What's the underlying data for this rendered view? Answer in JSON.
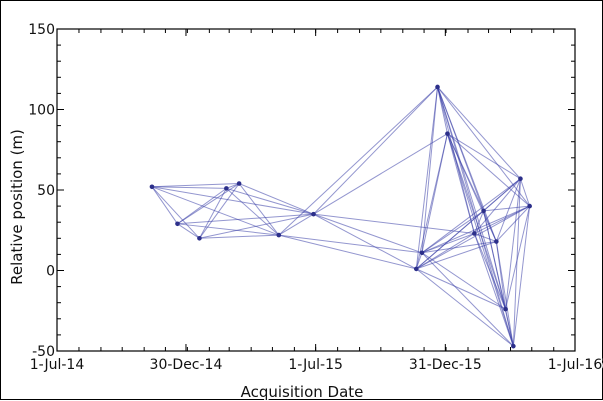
{
  "chart_data": {
    "type": "scatter",
    "title": "",
    "xlabel": "Acquisition Date",
    "ylabel": "Relative position (m)",
    "xlim": [
      "2014-07-01",
      "2016-07-01"
    ],
    "ylim": [
      -50,
      150
    ],
    "x_ticks": [
      "1-Jul-14",
      "30-Dec-14",
      "1-Jul-15",
      "31-Dec-15",
      "1-Jul-16"
    ],
    "x_tick_dates": [
      "2014-07-01",
      "2014-12-30",
      "2015-07-01",
      "2015-12-31",
      "2016-07-01"
    ],
    "y_ticks": [
      "-50",
      "0",
      "50",
      "100",
      "150"
    ],
    "y_tick_values": [
      -50,
      0,
      50,
      100,
      150
    ],
    "series": [
      {
        "type": "network",
        "color": "#3a3fa8",
        "x": [
          "2014-11-12",
          "2014-12-18",
          "2015-01-18",
          "2015-02-25",
          "2015-03-15",
          "2015-05-10",
          "2015-06-28",
          "2015-11-20",
          "2015-11-28",
          "2015-12-20",
          "2016-01-03",
          "2016-02-10",
          "2016-02-23",
          "2016-03-12",
          "2016-03-25",
          "2016-04-05",
          "2016-04-15",
          "2016-04-28"
        ],
        "values": [
          52,
          29,
          20,
          51,
          54,
          22,
          35,
          1,
          11,
          114,
          85,
          23,
          37,
          18,
          -24,
          -47,
          57,
          40
        ]
      }
    ]
  }
}
